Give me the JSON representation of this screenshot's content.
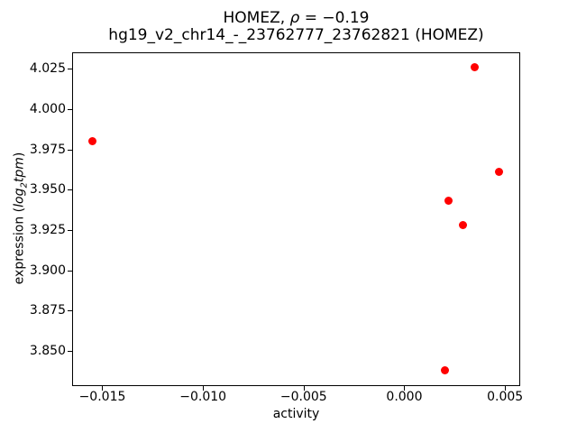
{
  "figure": {
    "background": "#ffffff",
    "text_color": "#000000"
  },
  "title": {
    "line1_prefix": "HOMEZ, ",
    "rho_symbol": "ρ",
    "line1_suffix": " = −0.19",
    "line2": "hg19_v2_chr14_-_23762777_23762821 (HOMEZ)"
  },
  "x_axis": {
    "label": "activity",
    "tick_labels": [
      "−0.015",
      "−0.010",
      "−0.005",
      "0.000",
      "0.005"
    ],
    "tick_values": [
      -0.015,
      -0.01,
      -0.005,
      0.0,
      0.005
    ]
  },
  "y_axis": {
    "label_prefix": "expression (",
    "label_italic_log": "log",
    "label_subscript": "2",
    "label_italic_tpm": "tpm",
    "label_suffix": ")",
    "tick_labels": [
      "3.850",
      "3.875",
      "3.900",
      "3.925",
      "3.950",
      "3.975",
      "4.000",
      "4.025"
    ],
    "tick_values": [
      3.85,
      3.875,
      3.9,
      3.925,
      3.95,
      3.975,
      4.0,
      4.025
    ]
  },
  "chart_data": {
    "type": "scatter",
    "title": "HOMEZ, ρ = −0.19\nhg19_v2_chr14_-_23762777_23762821 (HOMEZ)",
    "xlabel": "activity",
    "ylabel": "expression (log2tpm)",
    "legend": "none",
    "grid": false,
    "marker_color": "#ff0000",
    "marker_diameter_px": 9,
    "xlim": [
      -0.0165,
      0.00571
    ],
    "ylim": [
      3.8288,
      4.0352
    ],
    "points": [
      {
        "x": -0.0155,
        "y": 3.98
      },
      {
        "x": 0.0035,
        "y": 4.026
      },
      {
        "x": 0.0047,
        "y": 3.961
      },
      {
        "x": 0.0022,
        "y": 3.943
      },
      {
        "x": 0.0029,
        "y": 3.928
      },
      {
        "x": 0.002,
        "y": 3.838
      }
    ]
  }
}
